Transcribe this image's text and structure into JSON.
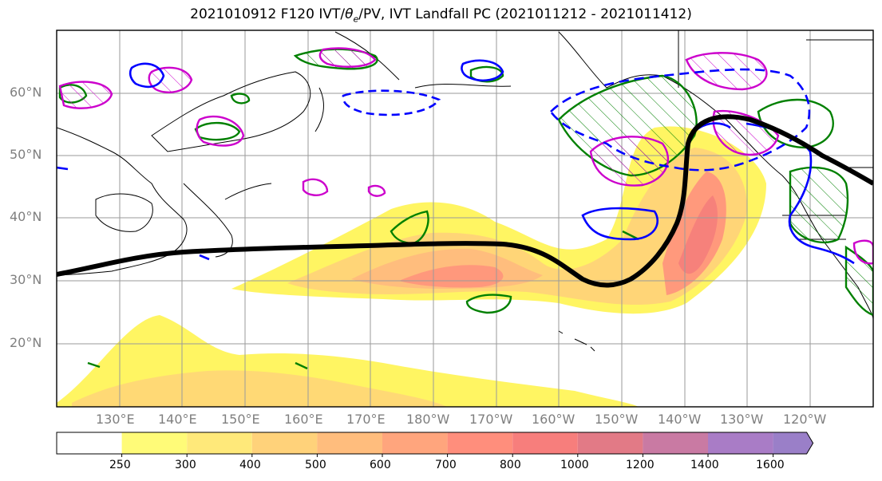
{
  "title": {
    "prefix": "2021010912 F120 IVT/",
    "theta": "θ",
    "theta_sub": "e",
    "suffix": "/PV, IVT Landfall PC (2021011212 - 2021011412)"
  },
  "axes": {
    "lat_labels": [
      "60°N",
      "50°N",
      "40°N",
      "30°N",
      "20°N"
    ],
    "lon_labels": [
      "130°E",
      "140°E",
      "150°E",
      "160°E",
      "170°E",
      "180°W",
      "170°W",
      "160°W",
      "150°W",
      "140°W",
      "130°W",
      "120°W"
    ]
  },
  "colorbar": {
    "ticks": [
      "250",
      "300",
      "400",
      "500",
      "600",
      "700",
      "800",
      "1000",
      "1200",
      "1400",
      "1600"
    ],
    "colors": [
      "#ffffff",
      "#fffb78",
      "#ffe97a",
      "#ffd27a",
      "#ffbd7d",
      "#ffa57d",
      "#ff8e7c",
      "#f77e7c",
      "#e27a86",
      "#c97aa3",
      "#a97cc6",
      "#9a7fc8"
    ]
  },
  "colors": {
    "ivt_fill_low": "#fff45a",
    "ivt_fill_high": "#f47a7a",
    "pv_contour": "#0000ff",
    "theta_contour": "#008000",
    "magenta_contour": "#cc00cc",
    "landfall_pc": "#000000",
    "coastline": "#000000",
    "gridline": "#9a9a9a"
  }
}
